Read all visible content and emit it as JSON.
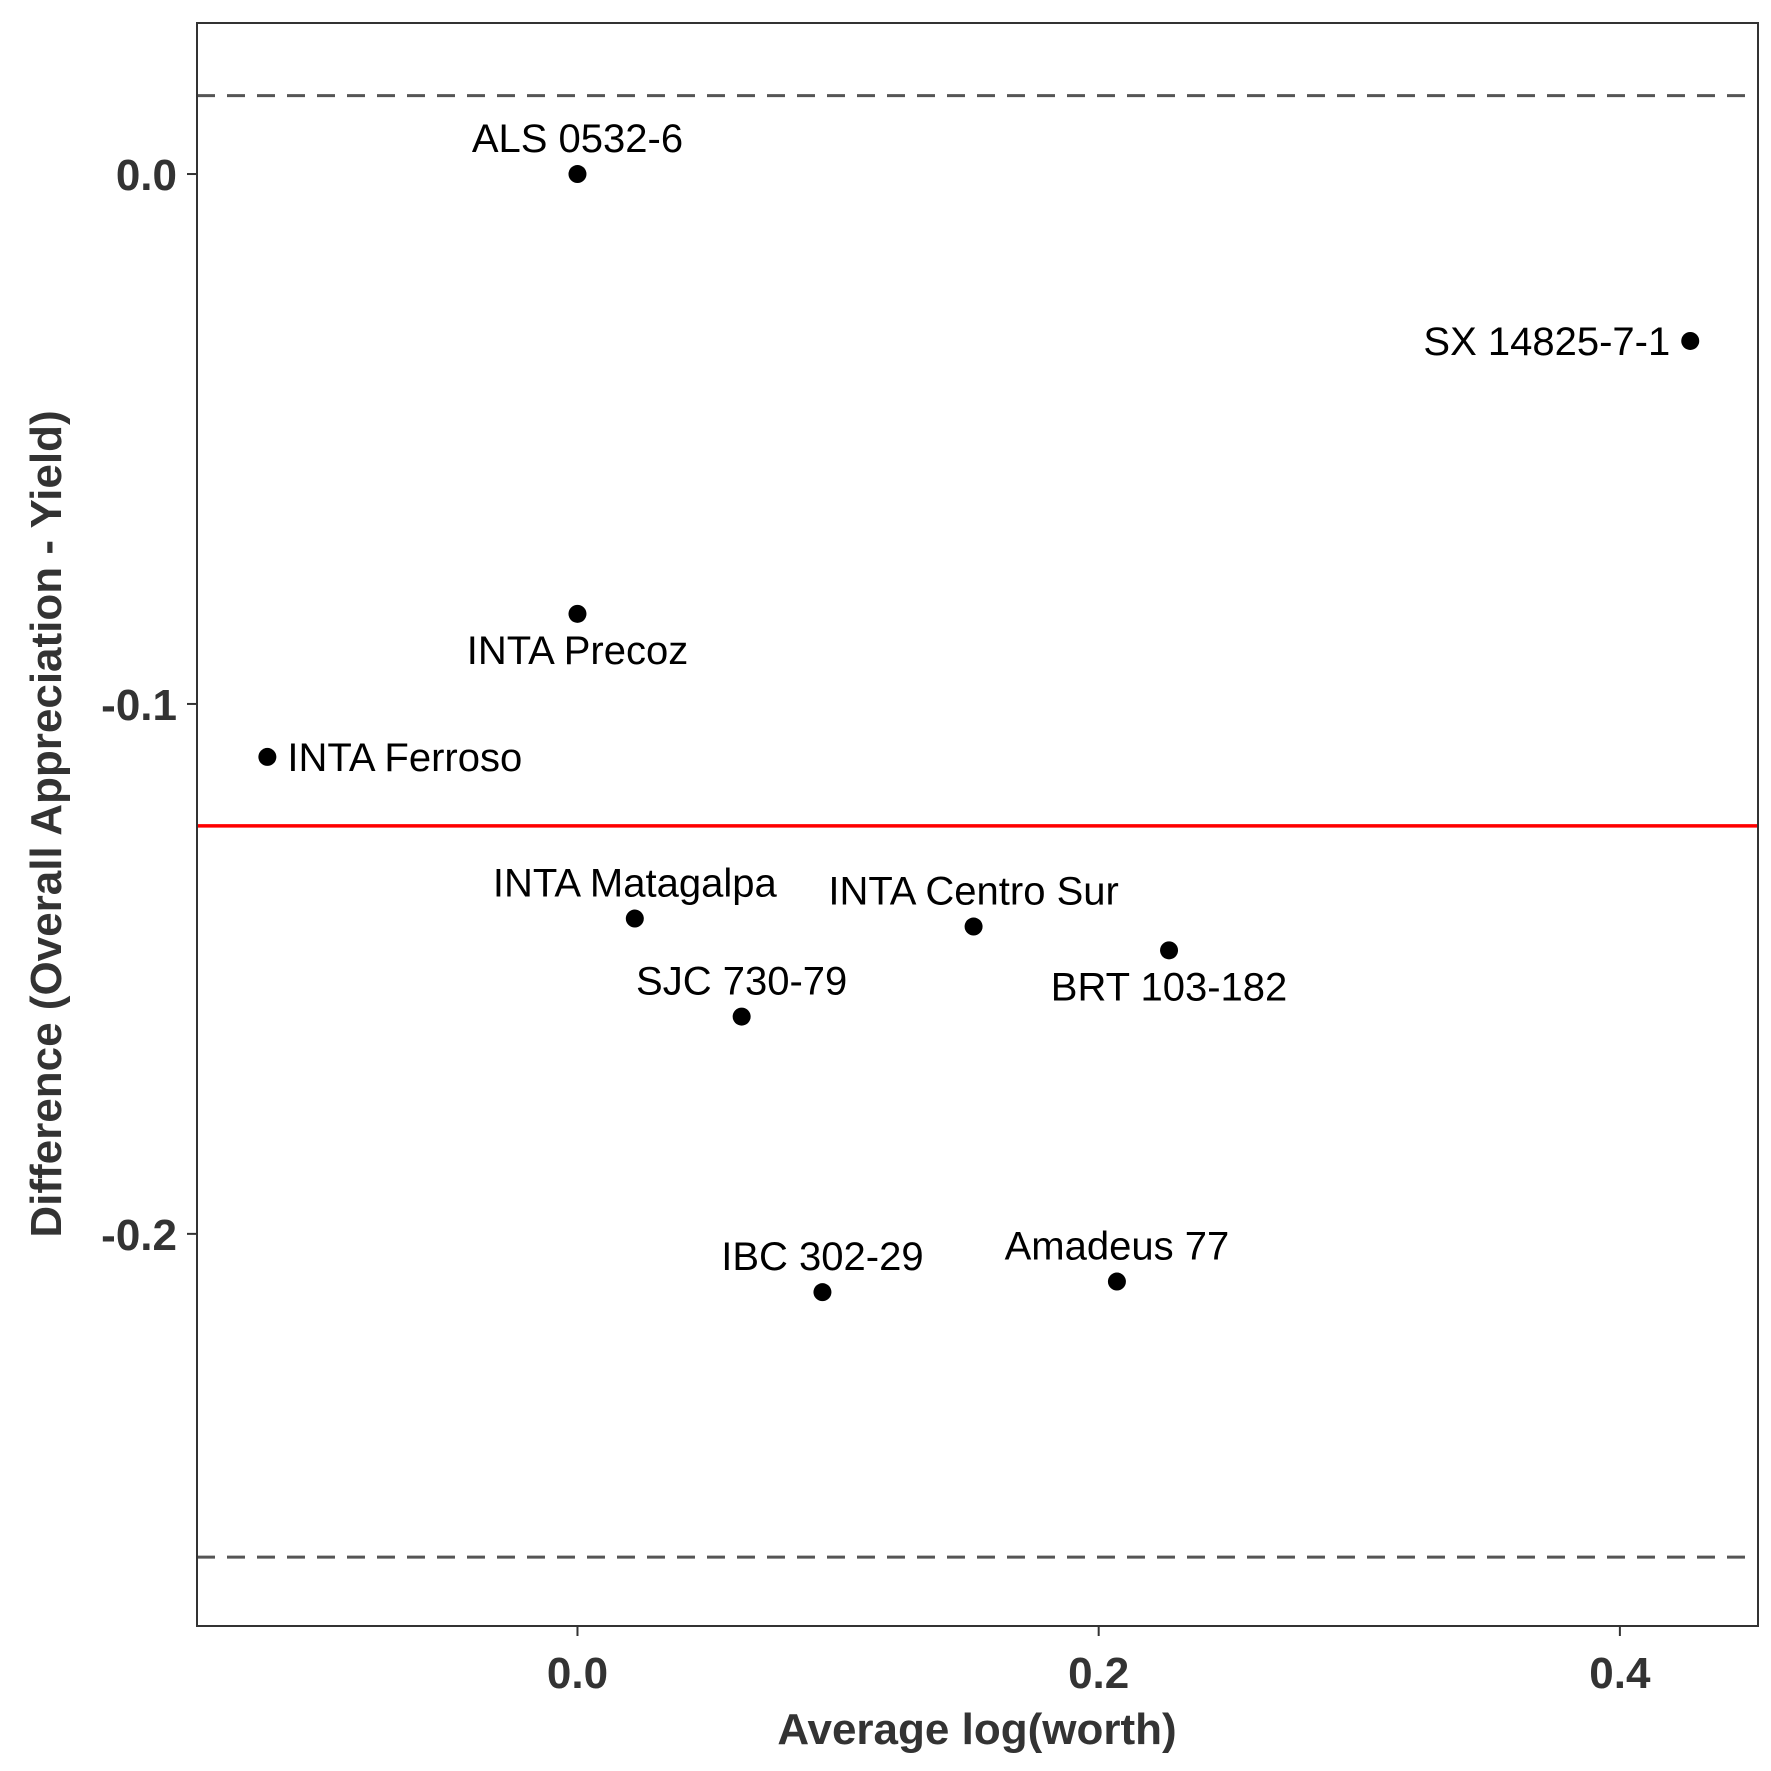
{
  "chart_data": {
    "type": "scatter",
    "title": "",
    "xlabel": "Average log(worth)",
    "ylabel": "Difference (Overall Appreciation - Yield)",
    "xlim": [
      -0.146,
      0.453
    ],
    "ylim": [
      -0.274,
      0.0285
    ],
    "x_ticks": [
      0.0,
      0.2,
      0.4
    ],
    "x_tick_labels": [
      "0.0",
      "0.2",
      "0.4"
    ],
    "y_ticks": [
      0.0,
      -0.1,
      -0.2
    ],
    "y_tick_labels": [
      "0.0",
      "-0.1",
      "-0.2"
    ],
    "grid": false,
    "legend": "none",
    "points": [
      {
        "label": "ALS 0532-6",
        "x": 0.0,
        "y": 0.0,
        "label_pos": "above"
      },
      {
        "label": "SX 14825-7-1",
        "x": 0.427,
        "y": -0.0315,
        "label_pos": "left"
      },
      {
        "label": "INTA Precoz",
        "x": 0.0,
        "y": -0.083,
        "label_pos": "below"
      },
      {
        "label": "INTA Ferroso",
        "x": -0.119,
        "y": -0.11,
        "label_pos": "right"
      },
      {
        "label": "INTA Matagalpa",
        "x": 0.022,
        "y": -0.1405,
        "label_pos": "above"
      },
      {
        "label": "INTA Centro Sur",
        "x": 0.152,
        "y": -0.142,
        "label_pos": "above"
      },
      {
        "label": "BRT 103-182",
        "x": 0.227,
        "y": -0.1465,
        "label_pos": "below"
      },
      {
        "label": "SJC 730-79",
        "x": 0.063,
        "y": -0.159,
        "label_pos": "above"
      },
      {
        "label": "IBC 302-29",
        "x": 0.094,
        "y": -0.211,
        "label_pos": "above"
      },
      {
        "label": "Amadeus 77",
        "x": 0.207,
        "y": -0.209,
        "label_pos": "above"
      }
    ],
    "reference_lines": [
      {
        "y": -0.123,
        "style": "solid",
        "color": "#ff0000"
      },
      {
        "y": 0.0148,
        "style": "dashed",
        "color": "#555555"
      },
      {
        "y": -0.261,
        "style": "dashed",
        "color": "#555555"
      }
    ],
    "colors": {
      "points": "#000000",
      "mean_line": "#ff0000",
      "limit_lines": "#555555",
      "axis_text": "#333333"
    }
  }
}
